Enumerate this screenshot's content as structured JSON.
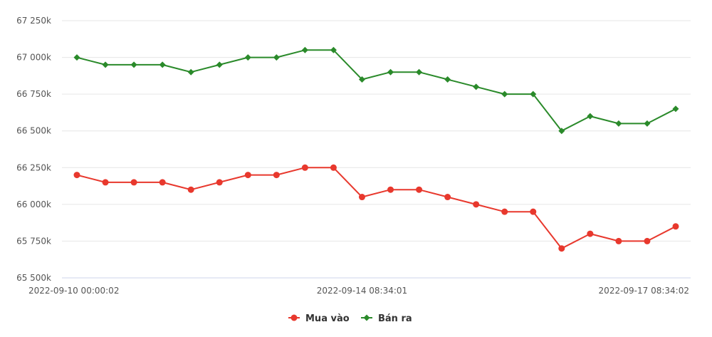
{
  "chart_data": {
    "type": "line",
    "title": "",
    "xlabel": "",
    "ylabel": "",
    "ylim": [
      65500,
      67250
    ],
    "y_ticks": [
      {
        "value": 65500,
        "label": "65 500k"
      },
      {
        "value": 65750,
        "label": "65 750k"
      },
      {
        "value": 66000,
        "label": "66 000k"
      },
      {
        "value": 66250,
        "label": "66 250k"
      },
      {
        "value": 66500,
        "label": "66 500k"
      },
      {
        "value": 66750,
        "label": "66 750k"
      },
      {
        "value": 67000,
        "label": "67 000k"
      },
      {
        "value": 67250,
        "label": "67 250k"
      }
    ],
    "x_tick_labels": [
      {
        "index": 0,
        "label": "2022-09-10 00:00:02"
      },
      {
        "index": 10,
        "label": "2022-09-14 08:34:01"
      },
      {
        "index": 21,
        "label": "2022-09-17 08:34:02"
      }
    ],
    "grid": true,
    "legend": "bottom-center",
    "series": [
      {
        "name": "Mua vào",
        "color": "#e8382d",
        "marker": "circle",
        "values": [
          66200,
          66150,
          66150,
          66150,
          66100,
          66150,
          66200,
          66200,
          66250,
          66250,
          66050,
          66100,
          66100,
          66050,
          66000,
          65950,
          65950,
          65700,
          65800,
          65750,
          65750,
          65850
        ]
      },
      {
        "name": "Bán ra",
        "color": "#2a8a2a",
        "marker": "diamond",
        "values": [
          67000,
          66950,
          66950,
          66950,
          66900,
          66950,
          67000,
          67000,
          67050,
          67050,
          66850,
          66900,
          66900,
          66850,
          66800,
          66750,
          66750,
          66500,
          66600,
          66550,
          66550,
          66650
        ]
      }
    ]
  }
}
